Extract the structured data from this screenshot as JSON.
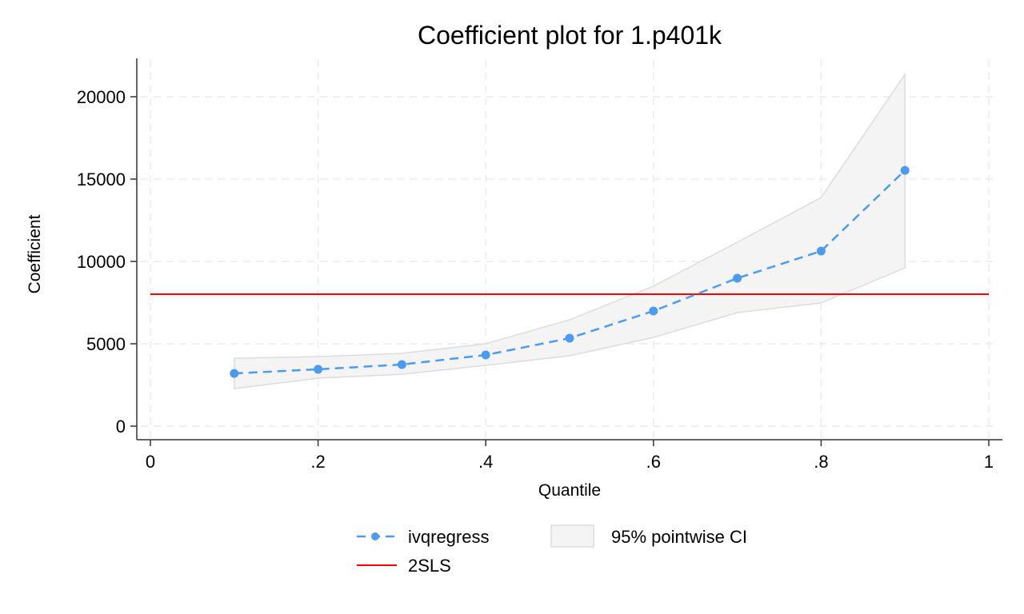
{
  "chart_data": {
    "type": "line",
    "title": "Coefficient plot for 1.p401k",
    "xlabel": "Quantile",
    "ylabel": "Coefficient",
    "xlim": [
      0,
      1
    ],
    "ylim": [
      0,
      20000
    ],
    "x_ticks": [
      0,
      0.2,
      0.4,
      0.6,
      0.8,
      1
    ],
    "x_tick_labels": [
      "0",
      ".2",
      ".4",
      ".6",
      ".8",
      "1"
    ],
    "y_ticks": [
      0,
      5000,
      10000,
      15000,
      20000
    ],
    "y_tick_labels": [
      "0",
      "5000",
      "10000",
      "15000",
      "20000"
    ],
    "grid": true,
    "legend_position": "bottom",
    "x": [
      0.1,
      0.2,
      0.3,
      0.4,
      0.5,
      0.6,
      0.7,
      0.8,
      0.9
    ],
    "series": [
      {
        "name": "ivqregress",
        "style": "dashed-line-with-markers",
        "color": "#4c9bf0",
        "values": [
          3200,
          3450,
          3740,
          4320,
          5340,
          6990,
          8980,
          10630,
          15530
        ]
      },
      {
        "name": "2SLS",
        "style": "solid-horizontal-line",
        "color": "#ff0000",
        "values": [
          8010
        ],
        "x_range": [
          0,
          1
        ]
      }
    ],
    "ci_band": {
      "name": "95% pointwise CI",
      "fill": "#f4f4f4",
      "stroke": "#dcdcdc",
      "lower": [
        2280,
        2910,
        3150,
        3690,
        4270,
        5390,
        6890,
        7480,
        9610
      ],
      "upper": [
        4120,
        4220,
        4420,
        5000,
        6460,
        8500,
        11160,
        13880,
        21360
      ]
    },
    "legend": [
      {
        "label": "ivqregress",
        "type": "dashed-marker"
      },
      {
        "label": "95% pointwise CI",
        "type": "area"
      },
      {
        "label": "2SLS",
        "type": "line"
      }
    ]
  }
}
